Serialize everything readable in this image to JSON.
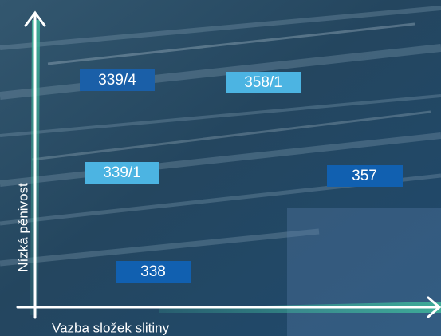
{
  "axes": {
    "x_label": "Vazba složek slitiny",
    "y_label": "Nízká pěnivost"
  },
  "nodes": [
    {
      "label": "339/4"
    },
    {
      "label": "358/1"
    },
    {
      "label": "339/1"
    },
    {
      "label": "357"
    },
    {
      "label": "338"
    }
  ]
}
